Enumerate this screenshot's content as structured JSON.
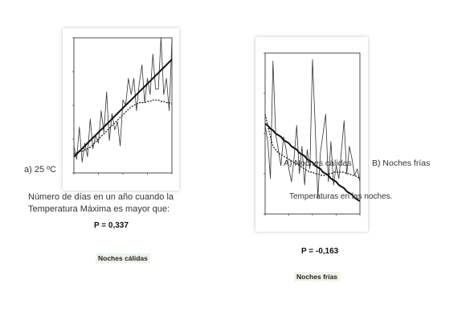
{
  "left": {
    "label_a": "a) 25 ºC",
    "description_line1": "Número de días en un año cuando la",
    "description_line2": "Temperatura Máxima es mayor que:",
    "p_value": "P = 0,337",
    "caption": "Noches cálidas"
  },
  "right": {
    "label_a": "A) Noches cálidas",
    "label_b": "B) Noches frías",
    "description": "Temperaturas en las noches.",
    "p_value": "P = -0,163",
    "caption": "Noches frías"
  },
  "chart_data": [
    {
      "type": "line",
      "title": "",
      "xlabel": "",
      "ylabel": "",
      "x": [
        1,
        2,
        3,
        4,
        5,
        6,
        7,
        8,
        9,
        10,
        11,
        12,
        13,
        14,
        15,
        16,
        17,
        18,
        19,
        20,
        21,
        22,
        23,
        24,
        25,
        26,
        27,
        28,
        29,
        30,
        31,
        32,
        33,
        34,
        35,
        36,
        37
      ],
      "ylim": [
        0,
        100
      ],
      "series": [
        {
          "values": [
            20,
            10,
            34,
            8,
            22,
            12,
            40,
            18,
            28,
            22,
            46,
            30,
            60,
            24,
            44,
            32,
            38,
            20,
            54,
            50,
            70,
            58,
            70,
            46,
            66,
            80,
            52,
            70,
            58,
            88,
            62,
            62,
            100,
            58,
            70,
            46,
            98
          ]
        },
        {
          "values": [
            14,
            15,
            16,
            16,
            17,
            18,
            19,
            21,
            23,
            25,
            27,
            29,
            31,
            33,
            35,
            37,
            39,
            41,
            43,
            45,
            47,
            49,
            50,
            51,
            52,
            52,
            52,
            53,
            53,
            54,
            54,
            54,
            53,
            53,
            52,
            52,
            51
          ]
        },
        {
          "values": [
            12,
            14,
            16,
            18,
            20,
            22,
            24,
            26,
            28,
            30,
            32,
            34,
            36,
            38,
            40,
            42,
            44,
            46,
            48,
            50,
            52,
            54,
            56,
            58,
            60,
            62,
            64,
            66,
            68,
            70,
            72,
            74,
            76,
            78,
            80,
            82,
            84
          ]
        }
      ]
    },
    {
      "type": "line",
      "title": "",
      "xlabel": "",
      "ylabel": "",
      "x": [
        1,
        2,
        3,
        4,
        5,
        6,
        7,
        8,
        9,
        10,
        11,
        12,
        13,
        14,
        15,
        16,
        17,
        18,
        19,
        20,
        21,
        22,
        23,
        24,
        25,
        26,
        27,
        28,
        29,
        30,
        31,
        32,
        33,
        34,
        35,
        36,
        37
      ],
      "ylim": [
        0,
        100
      ],
      "series": [
        {
          "values": [
            55,
            45,
            22,
            95,
            50,
            40,
            30,
            48,
            40,
            28,
            20,
            35,
            55,
            25,
            42,
            18,
            40,
            28,
            96,
            55,
            10,
            38,
            50,
            62,
            20,
            45,
            18,
            30,
            22,
            40,
            58,
            25,
            42,
            34,
            24,
            28,
            20
          ]
        },
        {
          "values": [
            62,
            55,
            48,
            42,
            40,
            38,
            37,
            36,
            35,
            34,
            33,
            32,
            31,
            30,
            29,
            28,
            27,
            26,
            26,
            25,
            25,
            24,
            24,
            24,
            25,
            25,
            26,
            26,
            26,
            26,
            26,
            25,
            25,
            24,
            24,
            23,
            22
          ]
        },
        {
          "values": [
            56,
            55,
            53,
            52,
            50,
            49,
            48,
            46,
            45,
            44,
            42,
            41,
            40,
            38,
            37,
            36,
            34,
            33,
            32,
            30,
            29,
            28,
            26,
            25,
            24,
            22,
            21,
            20,
            18,
            17,
            16,
            14,
            13,
            12,
            10,
            9,
            8
          ]
        }
      ]
    }
  ]
}
